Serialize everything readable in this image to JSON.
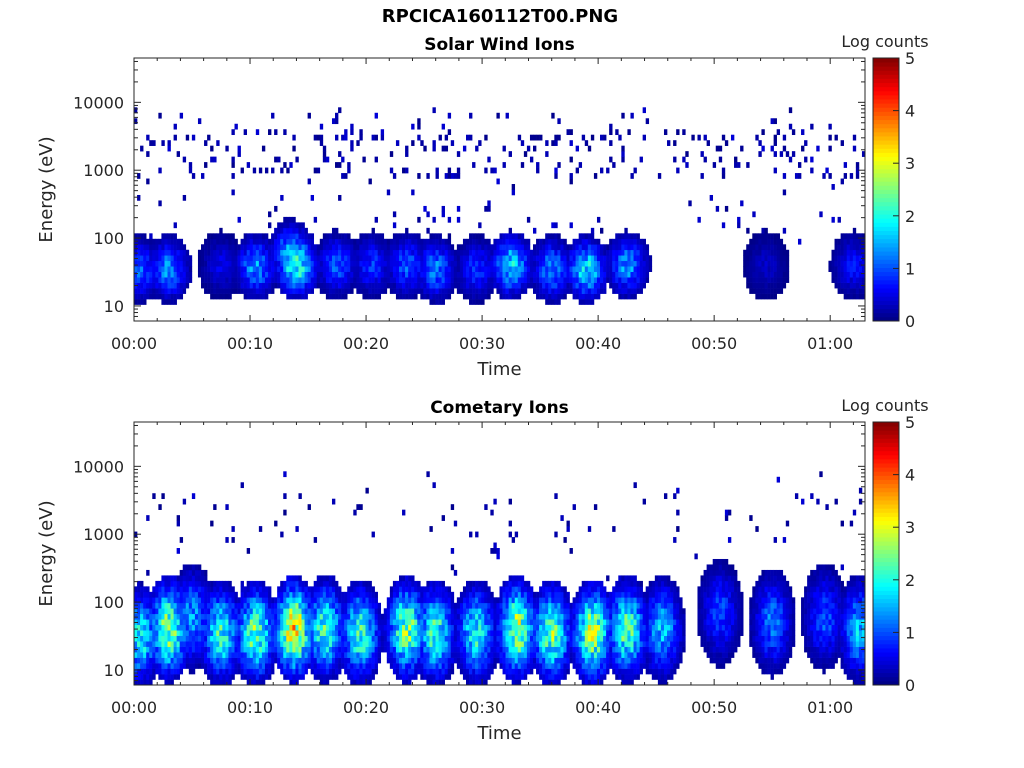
{
  "figure": {
    "title": "RPCICA160112T00.PNG"
  },
  "colorbar": {
    "label": "Log counts",
    "ticks": [
      "0",
      "1",
      "2",
      "3",
      "4",
      "5"
    ],
    "range": [
      0,
      5
    ],
    "colormap": "jet"
  },
  "chart_data": [
    {
      "type": "heatmap",
      "title": "Solar Wind Ions",
      "xlabel": "Time",
      "ylabel": "Energy (eV)",
      "x_tick_labels": [
        "00:00",
        "00:10",
        "00:20",
        "00:30",
        "00:40",
        "00:50",
        "01:00"
      ],
      "x_range_minutes": [
        0,
        63
      ],
      "y_tick_labels": [
        "10",
        "100",
        "1000",
        "10000"
      ],
      "y_scale": "log",
      "y_range": [
        6,
        45000
      ],
      "colorbar_label": "Log counts",
      "colorbar_range": [
        0,
        5
      ],
      "bursts": [
        {
          "t": 0.5,
          "e": 35,
          "level": 1.2
        },
        {
          "t": 3,
          "e": 35,
          "level": 1.5
        },
        {
          "t": 7.5,
          "e": 40,
          "level": 0.6
        },
        {
          "t": 10.5,
          "e": 38,
          "level": 1.6
        },
        {
          "t": 13.5,
          "e": 60,
          "level": 1.7
        },
        {
          "t": 14,
          "e": 40,
          "level": 2.4
        },
        {
          "t": 17.5,
          "e": 40,
          "level": 1.2
        },
        {
          "t": 20.5,
          "e": 40,
          "level": 1.0
        },
        {
          "t": 23.5,
          "e": 40,
          "level": 1.2
        },
        {
          "t": 26,
          "e": 35,
          "level": 1.4
        },
        {
          "t": 29.5,
          "e": 35,
          "level": 1.0
        },
        {
          "t": 32.5,
          "e": 40,
          "level": 2.0
        },
        {
          "t": 36,
          "e": 35,
          "level": 1.5
        },
        {
          "t": 39,
          "e": 35,
          "level": 2.1
        },
        {
          "t": 42.5,
          "e": 40,
          "level": 1.6
        },
        {
          "t": 54.5,
          "e": 40,
          "level": 0.4
        },
        {
          "t": 62,
          "e": 40,
          "level": 0.8
        }
      ]
    },
    {
      "type": "heatmap",
      "title": "Cometary Ions",
      "xlabel": "Time",
      "ylabel": "Energy (eV)",
      "x_tick_labels": [
        "00:00",
        "00:10",
        "00:20",
        "00:30",
        "00:40",
        "00:50",
        "01:00"
      ],
      "x_range_minutes": [
        0,
        63
      ],
      "y_tick_labels": [
        "10",
        "100",
        "1000",
        "10000"
      ],
      "y_scale": "log",
      "y_range": [
        6,
        45000
      ],
      "colorbar_label": "Log counts",
      "colorbar_range": [
        0,
        5
      ],
      "bursts": [
        {
          "t": 0.5,
          "e": 30,
          "level": 2.2
        },
        {
          "t": 3,
          "e": 40,
          "level": 3.0
        },
        {
          "t": 5,
          "e": 60,
          "level": 1.6
        },
        {
          "t": 7.5,
          "e": 35,
          "level": 2.4
        },
        {
          "t": 10.5,
          "e": 35,
          "level": 2.8
        },
        {
          "t": 13.8,
          "e": 40,
          "level": 3.6
        },
        {
          "t": 16.5,
          "e": 40,
          "level": 2.5
        },
        {
          "t": 19.5,
          "e": 35,
          "level": 2.5
        },
        {
          "t": 23.5,
          "e": 40,
          "level": 2.9
        },
        {
          "t": 26,
          "e": 35,
          "level": 2.5
        },
        {
          "t": 29.5,
          "e": 35,
          "level": 2.3
        },
        {
          "t": 33,
          "e": 40,
          "level": 3.1
        },
        {
          "t": 36,
          "e": 35,
          "level": 2.8
        },
        {
          "t": 39.5,
          "e": 35,
          "level": 3.2
        },
        {
          "t": 42.5,
          "e": 40,
          "level": 2.7
        },
        {
          "t": 45.5,
          "e": 40,
          "level": 1.8
        },
        {
          "t": 50.5,
          "e": 70,
          "level": 1.1
        },
        {
          "t": 55,
          "e": 50,
          "level": 1.4
        },
        {
          "t": 59.5,
          "e": 60,
          "level": 1.2
        },
        {
          "t": 62.5,
          "e": 40,
          "level": 1.8
        }
      ]
    }
  ]
}
